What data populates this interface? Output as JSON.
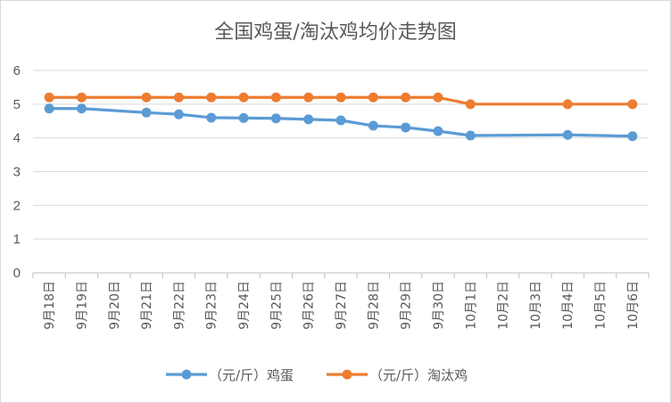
{
  "chart_data": {
    "type": "line",
    "title": "全国鸡蛋/淘汰鸡均价走势图",
    "categories": [
      "9月18日",
      "9月19日",
      "9月20日",
      "9月21日",
      "9月22日",
      "9月23日",
      "9月24日",
      "9月25日",
      "9月26日",
      "9月27日",
      "9月28日",
      "9月29日",
      "9月30日",
      "10月1日",
      "10月2日",
      "10月3日",
      "10月4日",
      "10月5日",
      "10月6日"
    ],
    "series": [
      {
        "name": "（元/斤）鸡蛋",
        "color": "#5b9bd5",
        "values": [
          4.87,
          4.87,
          null,
          4.75,
          4.7,
          4.6,
          4.59,
          4.58,
          4.55,
          4.52,
          4.36,
          4.31,
          4.2,
          4.07,
          null,
          null,
          4.09,
          null,
          4.05
        ]
      },
      {
        "name": "（元/斤）淘汰鸡",
        "color": "#ed7d31",
        "values": [
          5.2,
          5.2,
          null,
          5.2,
          5.2,
          5.2,
          5.2,
          5.2,
          5.2,
          5.2,
          5.2,
          5.2,
          5.2,
          5.0,
          null,
          null,
          5.0,
          null,
          5.0
        ]
      }
    ],
    "yticks": [
      "0",
      "1",
      "2",
      "3",
      "4",
      "5",
      "6"
    ],
    "ylim": [
      0,
      6
    ],
    "grid": true,
    "legend": "bottom"
  }
}
